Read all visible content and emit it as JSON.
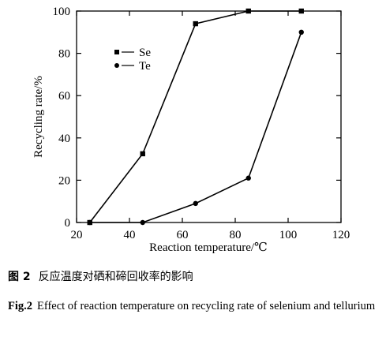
{
  "chart_data": {
    "type": "line",
    "xlabel": "Reaction temperature/℃",
    "ylabel": "Recycling rate/%",
    "xlim": [
      20,
      120
    ],
    "ylim": [
      0,
      100
    ],
    "xticks": [
      "20",
      "40",
      "60",
      "80",
      "100",
      "120"
    ],
    "yticks": [
      "0",
      "20",
      "40",
      "60",
      "80",
      "100"
    ],
    "legend_position": "top-left",
    "grid": false,
    "series": [
      {
        "name": "Se",
        "marker": "square",
        "points": [
          {
            "x": 25,
            "y": 0
          },
          {
            "x": 45,
            "y": 32.5
          },
          {
            "x": 65,
            "y": 94
          },
          {
            "x": 85,
            "y": 100
          },
          {
            "x": 105,
            "y": 100
          }
        ]
      },
      {
        "name": "Te",
        "marker": "circle",
        "points": [
          {
            "x": 25,
            "y": 0
          },
          {
            "x": 45,
            "y": 0
          },
          {
            "x": 65,
            "y": 9
          },
          {
            "x": 85,
            "y": 21
          },
          {
            "x": 105,
            "y": 90
          }
        ]
      }
    ]
  },
  "caption": {
    "cn_label": "图 2",
    "cn_text": "反应温度对硒和碲回收率的影响",
    "en_label": "Fig.2",
    "en_text": "Effect of reaction temperature on recycling rate of selenium and tellurium"
  }
}
